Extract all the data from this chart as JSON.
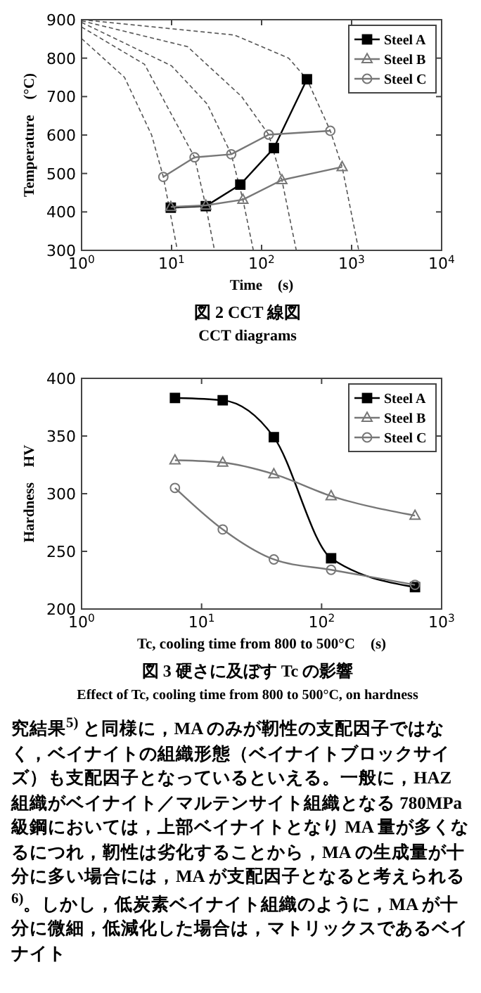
{
  "chart_data": [
    {
      "type": "line",
      "title": "図 2  CCT 線図",
      "subtitle": "CCT diagrams",
      "xlabel": "Time　(s)",
      "ylabel": "Temperature　(°C)",
      "log": "x",
      "xlim": [
        1,
        10000
      ],
      "xticks": [
        {
          "value": 1,
          "label": "10$^{0}$"
        },
        {
          "value": 10,
          "label": "10$^{1}$"
        },
        {
          "value": 100,
          "label": "10$^{2}$"
        },
        {
          "value": 1000,
          "label": "10$^{3}$"
        },
        {
          "value": 10000,
          "label": "10$^{4}$"
        }
      ],
      "ylim": [
        300,
        900
      ],
      "yticks": [
        300,
        400,
        500,
        600,
        700,
        800,
        900
      ],
      "grid": false,
      "legend": "top right",
      "series": [
        {
          "color": "#555555",
          "line_style": "dashed",
          "marker": "none",
          "x": [
            1,
            3,
            6,
            8.1,
            11.6
          ],
          "values": [
            851,
            750,
            600,
            491,
            300
          ]
        },
        {
          "color": "#555555",
          "line_style": "dashed",
          "marker": "none",
          "x": [
            1,
            5,
            18,
            24,
            30
          ],
          "values": [
            881,
            784,
            542,
            415,
            300
          ]
        },
        {
          "color": "#555555",
          "line_style": "dashed",
          "marker": "none",
          "x": [
            1,
            10,
            25,
            46,
            62,
            81
          ],
          "values": [
            893,
            780,
            680,
            550,
            432,
            300
          ]
        },
        {
          "color": "#555555",
          "line_style": "dashed",
          "marker": "none",
          "x": [
            1,
            15,
            60,
            120,
            168,
            243
          ],
          "values": [
            897,
            830,
            700,
            601,
            483,
            300
          ]
        },
        {
          "color": "#555555",
          "line_style": "dashed",
          "marker": "none",
          "x": [
            1,
            50,
            200,
            319,
            580,
            785,
            1200
          ],
          "values": [
            900,
            860,
            800,
            745,
            611,
            517,
            300
          ]
        },
        {
          "name": "Steel A",
          "color": "#000000",
          "marker": "square",
          "x": [
            9.8,
            24,
            58,
            137,
            319
          ],
          "values": [
            411,
            415,
            471,
            566,
            745
          ]
        },
        {
          "name": "Steel B",
          "color": "#777777",
          "marker": "triangle",
          "x": [
            9.8,
            24,
            62,
            168,
            785
          ],
          "values": [
            413,
            417,
            432,
            483,
            517
          ]
        },
        {
          "name": "Steel C",
          "color": "#777777",
          "marker": "circle",
          "x": [
            8.1,
            18,
            46,
            120,
            580
          ],
          "values": [
            491,
            542,
            550,
            601,
            611
          ]
        }
      ]
    },
    {
      "type": "line",
      "title": "図 3  硬さに及ぼす Tc の影響",
      "subtitle": "Effect of Tc, cooling time from 800 to 500°C, on hardness",
      "xlabel": "Tc, cooling time from 800 to 500°C　(s)",
      "ylabel": "Hardness　HV",
      "log": "x",
      "xlim": [
        1,
        1000
      ],
      "xticks": [
        {
          "value": 1,
          "label": "10$^{0}$"
        },
        {
          "value": 10,
          "label": "10$^{1}$"
        },
        {
          "value": 100,
          "label": "10$^{2}$"
        },
        {
          "value": 1000,
          "label": "10$^{3}$"
        }
      ],
      "ylim": [
        200,
        400
      ],
      "yticks": [
        200,
        250,
        300,
        350,
        400
      ],
      "grid": false,
      "legend": "top right",
      "x": [
        6,
        15,
        40,
        120,
        600
      ],
      "series": [
        {
          "name": "Steel A",
          "color": "#000000",
          "marker": "square",
          "values": [
            383,
            381,
            349,
            244,
            219
          ]
        },
        {
          "name": "Steel B",
          "color": "#777777",
          "marker": "triangle",
          "values": [
            329,
            327,
            317,
            298,
            281
          ]
        },
        {
          "name": "Steel C",
          "color": "#777777",
          "marker": "circle",
          "values": [
            305,
            269,
            243,
            234,
            221
          ]
        }
      ],
      "annotations": [
        "究結果$^{5)}$ と同様に，MA のみが靭性の支配因子ではなく，ベイナイトの組織形態（ベイナイトブロックサイズ）も支配因子となっているといえる。一般に，HAZ 組織がベイナイト／マルテンサイト組織となる 780MPa 級鋼においては，上部ベイナイトとなり MA 量が多くなるにつれ，靭性は劣化することから，MA の生成量が十分に多い場合には，MA が支配因子となると考えられる$^{6)}$。しかし，低炭素ベイナイト組織のように，MA が十分に微細，低減化した場合は，マトリックスであるベイナイト"
      ]
    }
  ]
}
